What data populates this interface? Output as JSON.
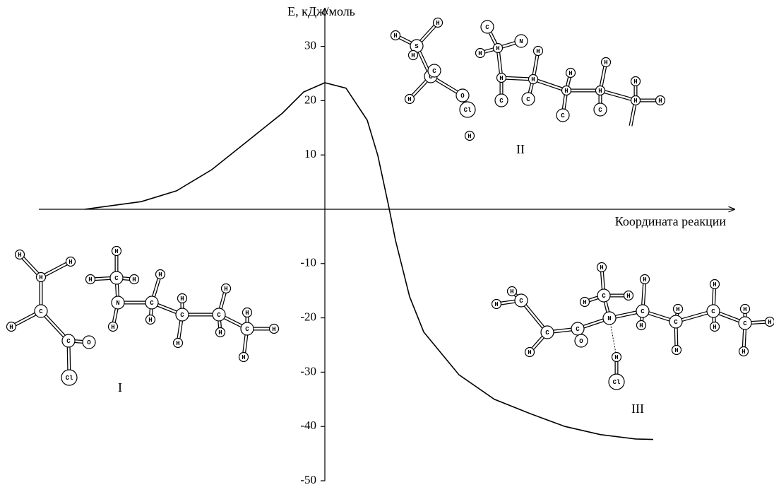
{
  "chart_data": {
    "type": "line",
    "y_label": "E, кДж/моль",
    "x_label": "Координата реакции",
    "color": "#000000",
    "x": [
      -3.4,
      -2.6,
      -2.1,
      -1.6,
      -1.1,
      -0.6,
      -0.3,
      0,
      0.3,
      0.6,
      0.75,
      0.9,
      1.0,
      1.2,
      1.4,
      1.9,
      2.4,
      2.9,
      3.4,
      3.9,
      4.4,
      4.65
    ],
    "values": [
      0,
      1.4,
      3.4,
      7.3,
      12.5,
      17.7,
      21.6,
      23.3,
      22.3,
      16.4,
      9.9,
      0.8,
      -5.7,
      -16.1,
      -22.6,
      -30.5,
      -35,
      -37.6,
      -40,
      -41.5,
      -42.3,
      -42.4
    ],
    "xlim": [
      -4.05,
      5.8
    ],
    "ylim": [
      -50,
      37
    ],
    "yticks": [
      -50,
      -40,
      -30,
      -20,
      -10,
      10,
      20,
      30
    ]
  },
  "molecules": [
    {
      "label": "I",
      "atoms": [
        "H",
        "H",
        "H",
        "C",
        "H",
        "C",
        "O",
        "Cl",
        "H",
        "C",
        "H",
        "H",
        "N",
        "H",
        "C",
        "H",
        "H",
        "C",
        "H",
        "H",
        "C",
        "H",
        "H",
        "C",
        "H",
        "H",
        "H"
      ]
    },
    {
      "label": "II",
      "atoms": [
        "S",
        "H",
        "H",
        "H",
        "C",
        "H",
        "C",
        "O",
        "Cl",
        "H",
        "C",
        "H",
        "H",
        "N",
        "H",
        "C",
        "H",
        "H",
        "C",
        "H",
        "H",
        "C",
        "H",
        "H",
        "C",
        "H",
        "H",
        "H"
      ]
    },
    {
      "label": "III",
      "atoms": [
        "H",
        "C",
        "H",
        "C",
        "H",
        "C",
        "O",
        "N",
        "C",
        "H",
        "H",
        "H",
        "H",
        "Cl",
        "C",
        "H",
        "H",
        "C",
        "H",
        "H",
        "C",
        "H",
        "H",
        "C",
        "H",
        "H",
        "H"
      ]
    }
  ]
}
